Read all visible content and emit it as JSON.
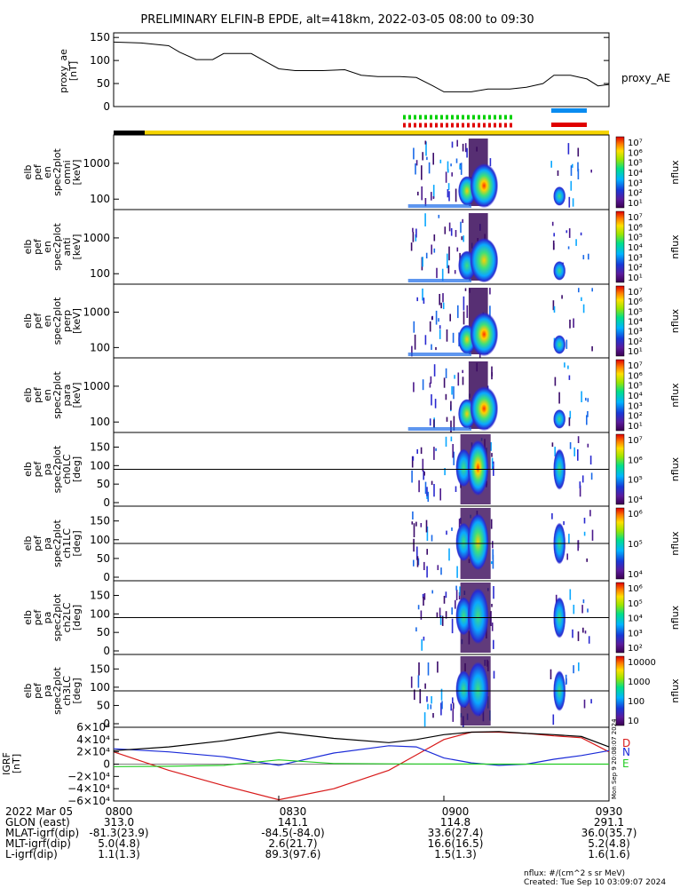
{
  "title": "PRELIMINARY ELFIN-B EPDE, alt=418km, 2022-03-05 08:00 to 09:30",
  "colors": {
    "plot_bg": "#ffffff",
    "frame": "#000000",
    "status_yellow": "#f5d400",
    "status_black": "#000000",
    "bar_blue": "#0a8cf0",
    "bar_red": "#e00000",
    "dot_green": "#00d000",
    "dot_red": "#e00000",
    "igrf_n": "#1a2ad8",
    "igrf_d": "#d81a1a",
    "igrf_e": "#22cc22",
    "igrf_total": "#000000"
  },
  "time_axis": {
    "start": "08:00",
    "end": "09:30",
    "ticks": [
      "0800",
      "0830",
      "0900",
      "0930"
    ]
  },
  "proxy_panel": {
    "ylabel": [
      "proxy_ae",
      "[nT]"
    ],
    "legend": "proxy_AE",
    "yticks": [
      "150",
      "100",
      "50",
      "0"
    ]
  },
  "energy_panels": [
    {
      "ylabel": [
        "elb",
        "pef",
        "en",
        "spec2plot",
        "omni",
        "[keV]"
      ],
      "yticks": [
        "1000",
        "100"
      ],
      "cticks": [
        "10⁷",
        "10⁶",
        "10⁵",
        "10⁴",
        "10³",
        "10²",
        "10¹"
      ],
      "clabel": "nflux"
    },
    {
      "ylabel": [
        "elb",
        "pef",
        "en",
        "spec2plot",
        "anti",
        "[keV]"
      ],
      "yticks": [
        "1000",
        "100"
      ],
      "cticks": [
        "10⁷",
        "10⁶",
        "10⁵",
        "10⁴",
        "10³",
        "10²",
        "10¹"
      ],
      "clabel": "nflux"
    },
    {
      "ylabel": [
        "elb",
        "pef",
        "en",
        "spec2plot",
        "perp",
        "[keV]"
      ],
      "yticks": [
        "1000",
        "100"
      ],
      "cticks": [
        "10⁷",
        "10⁶",
        "10⁵",
        "10⁴",
        "10³",
        "10²",
        "10¹"
      ],
      "clabel": "nflux"
    },
    {
      "ylabel": [
        "elb",
        "pef",
        "en",
        "spec2plot",
        "para",
        "[keV]"
      ],
      "yticks": [
        "1000",
        "100"
      ],
      "cticks": [
        "10⁷",
        "10⁶",
        "10⁵",
        "10⁴",
        "10³",
        "10²",
        "10¹"
      ],
      "clabel": "nflux"
    }
  ],
  "pa_panels": [
    {
      "ylabel": [
        "elb",
        "pef",
        "pa",
        "spec2plot",
        "ch0LC",
        "[deg]"
      ],
      "yticks": [
        "150",
        "100",
        "50",
        "0"
      ],
      "cticks": [
        "10⁷",
        "10⁶",
        "10⁵",
        "10⁴"
      ],
      "clabel": "nflux"
    },
    {
      "ylabel": [
        "elb",
        "pef",
        "pa",
        "spec2plot",
        "ch1LC",
        "[deg]"
      ],
      "yticks": [
        "150",
        "100",
        "50",
        "0"
      ],
      "cticks": [
        "10⁶",
        "10⁵",
        "10⁴"
      ],
      "clabel": "nflux"
    },
    {
      "ylabel": [
        "elb",
        "pef",
        "pa",
        "spec2plot",
        "ch2LC",
        "[deg]"
      ],
      "yticks": [
        "150",
        "100",
        "50",
        "0"
      ],
      "cticks": [
        "10⁶",
        "10⁵",
        "10⁴",
        "10³",
        "10²"
      ],
      "clabel": "nflux"
    },
    {
      "ylabel": [
        "elb",
        "pef",
        "pa",
        "spec2plot",
        "ch3LC",
        "[deg]"
      ],
      "yticks": [
        "150",
        "100",
        "50",
        "0"
      ],
      "cticks": [
        "10000",
        "1000",
        "100",
        "10"
      ],
      "clabel": "nflux"
    }
  ],
  "igrf_panel": {
    "ylabel": [
      "IGRF",
      "[nT]"
    ],
    "yticks": [
      "6×10⁴",
      "4×10⁴",
      "2×10⁴",
      "0",
      "−2×10⁴",
      "−4×10⁴",
      "−6×10⁴"
    ],
    "legend": [
      "D",
      "N",
      "E"
    ],
    "stamp": "Mon Sep  9 20:08:07 2024"
  },
  "chart_data": {
    "type": "line",
    "title": "PRELIMINARY ELFIN-B EPDE, alt=418km, 2022-03-05 08:00 to 09:30",
    "x_range": [
      "08:00",
      "09:30"
    ],
    "proxy_ae": {
      "name": "proxy_AE",
      "ylim": [
        0,
        160
      ],
      "x": [
        0,
        5,
        10,
        12,
        15,
        18,
        20,
        25,
        28,
        30,
        33,
        38,
        42,
        45,
        48,
        52,
        55,
        58,
        60,
        62,
        65,
        68,
        70,
        72,
        75,
        78,
        80,
        83,
        86,
        88,
        90
      ],
      "y": [
        140,
        138,
        132,
        118,
        102,
        102,
        115,
        115,
        95,
        82,
        78,
        78,
        80,
        68,
        65,
        65,
        63,
        45,
        32,
        32,
        32,
        38,
        38,
        38,
        42,
        50,
        68,
        68,
        60,
        45,
        48
      ]
    },
    "igrf": {
      "ylim": [
        -60000,
        60000
      ],
      "x": [
        0,
        10,
        20,
        30,
        40,
        50,
        55,
        60,
        65,
        70,
        75,
        80,
        85,
        90
      ],
      "series": [
        {
          "name": "D",
          "values": [
            20000,
            -10000,
            -35000,
            -58000,
            -40000,
            -10000,
            15000,
            40000,
            52000,
            52000,
            50000,
            46000,
            43000,
            20000
          ]
        },
        {
          "name": "N",
          "values": [
            25000,
            20000,
            12000,
            -2000,
            18000,
            30000,
            28000,
            10000,
            2000,
            -2000,
            0,
            8000,
            14000,
            22000
          ]
        },
        {
          "name": "E",
          "values": [
            -4000,
            -3500,
            -2000,
            7000,
            1000,
            500,
            300,
            200,
            100,
            0,
            0,
            0,
            0,
            0
          ]
        },
        {
          "values": [
            22000,
            28000,
            38000,
            52000,
            42000,
            35000,
            40000,
            48000,
            52000,
            53000,
            50000,
            48000,
            45000,
            28000
          ]
        }
      ]
    }
  },
  "footer": {
    "rows": [
      {
        "label": "2022 Mar 05",
        "values": [
          "0800",
          "0830",
          "0900",
          "0930"
        ]
      },
      {
        "label": "GLON (east)",
        "values": [
          "313.0",
          "141.1",
          "114.8",
          "291.1"
        ]
      },
      {
        "label": "MLAT-igrf(dip)",
        "values": [
          "-81.3(23.9)",
          "-84.5(-84.0)",
          "33.6(27.4)",
          "36.0(35.7)"
        ]
      },
      {
        "label": "MLT-igrf(dip)",
        "values": [
          "5.0(4.8)",
          "2.6(21.7)",
          "16.6(16.5)",
          "5.2(4.8)"
        ]
      },
      {
        "label": "L-igrf(dip)",
        "values": [
          "1.1(1.3)",
          "89.3(97.6)",
          "1.5(1.3)",
          "1.6(1.6)"
        ]
      }
    ],
    "units_note": "nflux: #/(cm^2 s sr MeV)",
    "created": "Created: Tue Sep 10 03:09:07 2024"
  }
}
